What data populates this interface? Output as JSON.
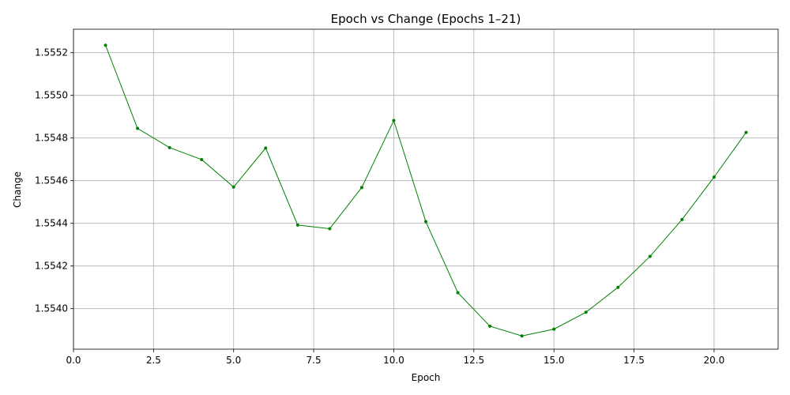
{
  "chart_data": {
    "type": "line",
    "title": "Epoch vs Change (Epochs 1–21)",
    "xlabel": "Epoch",
    "ylabel": "Change",
    "xlim": [
      0,
      22
    ],
    "ylim": [
      1.55381,
      1.55531
    ],
    "x_ticks": [
      0.0,
      2.5,
      5.0,
      7.5,
      10.0,
      12.5,
      15.0,
      17.5,
      20.0
    ],
    "x_tick_labels": [
      "0.0",
      "2.5",
      "5.0",
      "7.5",
      "10.0",
      "12.5",
      "15.0",
      "17.5",
      "20.0"
    ],
    "y_ticks": [
      1.554,
      1.5542,
      1.5544,
      1.5546,
      1.5548,
      1.555,
      1.5552
    ],
    "y_tick_labels": [
      "1.5540",
      "1.5542",
      "1.5544",
      "1.5546",
      "1.5548",
      "1.5550",
      "1.5552"
    ],
    "grid": true,
    "line_color": "#008000",
    "series": [
      {
        "x": [
          1,
          2,
          3,
          4,
          5,
          6,
          7,
          8,
          9,
          10,
          11,
          12,
          13,
          14,
          15,
          16,
          17,
          18,
          19,
          20,
          21
        ],
        "values": [
          1.555235,
          1.554845,
          1.554755,
          1.554699,
          1.55457,
          1.554753,
          1.554392,
          1.554375,
          1.554568,
          1.554882,
          1.554408,
          1.554075,
          1.553918,
          1.553872,
          1.553904,
          1.553983,
          1.5541,
          1.554245,
          1.554418,
          1.554617,
          1.554826
        ]
      }
    ]
  }
}
